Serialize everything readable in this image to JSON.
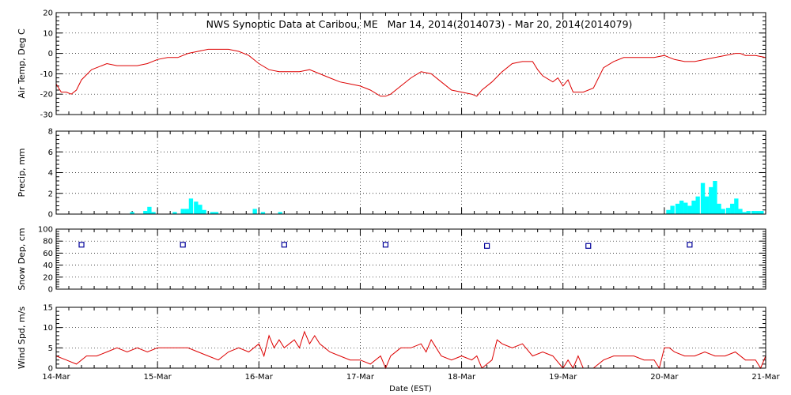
{
  "title": "NWS Synoptic Data at Caribou, ME   Mar 14, 2014(2014073) - Mar 20, 2014(2014079)",
  "xlabel": "Date (EST)",
  "xticks": [
    "14-Mar",
    "15-Mar",
    "16-Mar",
    "17-Mar",
    "18-Mar",
    "19-Mar",
    "20-Mar",
    "21-Mar"
  ],
  "colors": {
    "temp": "#dd0000",
    "precip": "#00ffff",
    "snow": "#000099",
    "wind": "#dd0000",
    "axis": "#000000"
  },
  "chart_data": [
    {
      "type": "line",
      "ylabel": "Air Temp, Deg C",
      "ylim": [
        -30,
        20
      ],
      "yticks": [
        -30,
        -20,
        -10,
        0,
        10,
        20
      ],
      "grid": true,
      "x_unit": "days since 14-Mar 00:00 EST",
      "x": [
        0,
        0.05,
        0.1,
        0.15,
        0.2,
        0.25,
        0.35,
        0.45,
        0.5,
        0.6,
        0.7,
        0.8,
        0.9,
        1.0,
        1.1,
        1.2,
        1.3,
        1.4,
        1.5,
        1.6,
        1.7,
        1.8,
        1.9,
        2.0,
        2.1,
        2.2,
        2.3,
        2.4,
        2.5,
        2.6,
        2.7,
        2.8,
        2.9,
        3.0,
        3.1,
        3.2,
        3.25,
        3.3,
        3.4,
        3.5,
        3.6,
        3.7,
        3.8,
        3.9,
        4.0,
        4.1,
        4.15,
        4.2,
        4.3,
        4.4,
        4.5,
        4.6,
        4.7,
        4.75,
        4.8,
        4.9,
        4.95,
        5.0,
        5.05,
        5.1,
        5.2,
        5.3,
        5.4,
        5.5,
        5.6,
        5.7,
        5.8,
        5.9,
        6.0,
        6.05,
        6.1,
        6.2,
        6.3,
        6.4,
        6.5,
        6.6,
        6.7,
        6.75,
        6.8,
        6.9,
        7.0
      ],
      "values": [
        -15,
        -19,
        -19,
        -20,
        -18,
        -13,
        -8,
        -6,
        -5,
        -6,
        -6,
        -6,
        -5,
        -3,
        -2,
        -2,
        0,
        1,
        2,
        2,
        2,
        1,
        -1,
        -5,
        -8,
        -9,
        -9,
        -9,
        -8,
        -10,
        -12,
        -14,
        -15,
        -16,
        -18,
        -21,
        -21,
        -20,
        -16,
        -12,
        -9,
        -10,
        -14,
        -18,
        -19,
        -20,
        -21,
        -18,
        -14,
        -9,
        -5,
        -4,
        -4,
        -8,
        -11,
        -14,
        -12,
        -16,
        -13,
        -19,
        -19,
        -17,
        -7,
        -4,
        -2,
        -2,
        -2,
        -2,
        -1,
        -2,
        -3,
        -4,
        -4,
        -3,
        -2,
        -1,
        0,
        0,
        -1,
        -1,
        -2
      ]
    },
    {
      "type": "bar",
      "ylabel": "Precip, mm",
      "ylim": [
        0,
        8
      ],
      "yticks": [
        0,
        2,
        4,
        6,
        8
      ],
      "grid": true,
      "x_unit": "days since 14-Mar 00:00 EST (hourly bins)",
      "x": [
        0.75,
        0.88,
        0.92,
        0.96,
        1.17,
        1.25,
        1.29,
        1.33,
        1.38,
        1.42,
        1.46,
        1.54,
        1.58,
        1.96,
        2.04,
        2.21,
        6.04,
        6.08,
        6.13,
        6.17,
        6.21,
        6.25,
        6.29,
        6.33,
        6.38,
        6.42,
        6.46,
        6.5,
        6.54,
        6.58,
        6.63,
        6.67,
        6.71,
        6.75,
        6.79,
        6.83,
        6.88,
        6.92,
        6.96
      ],
      "values": [
        0.2,
        0.3,
        0.7,
        0.2,
        0.2,
        0.5,
        0.5,
        1.5,
        1.2,
        0.9,
        0.4,
        0.2,
        0.2,
        0.5,
        0.2,
        0.2,
        0.4,
        0.8,
        1.0,
        1.3,
        1.1,
        0.8,
        1.3,
        1.7,
        3.0,
        1.7,
        2.6,
        3.2,
        1.0,
        0.5,
        0.6,
        1.0,
        1.5,
        0.5,
        0.2,
        0.3,
        0.3,
        0.3,
        0.3
      ]
    },
    {
      "type": "scatter",
      "ylabel": "Snow Dep, cm",
      "ylim": [
        0,
        100
      ],
      "yticks": [
        0,
        20,
        40,
        60,
        80,
        100
      ],
      "grid": true,
      "x_unit": "days since 14-Mar 00:00 EST",
      "x": [
        0.25,
        1.25,
        2.25,
        3.25,
        4.25,
        5.25,
        6.25
      ],
      "values": [
        74,
        74,
        74,
        74,
        72,
        72,
        74
      ]
    },
    {
      "type": "line",
      "ylabel": "Wind Spd, m/s",
      "ylim": [
        0,
        15
      ],
      "yticks": [
        0,
        5,
        10,
        15
      ],
      "grid": true,
      "x_unit": "days since 14-Mar 00:00 EST",
      "x": [
        0,
        0.1,
        0.2,
        0.3,
        0.4,
        0.5,
        0.6,
        0.7,
        0.8,
        0.9,
        1.0,
        1.1,
        1.2,
        1.3,
        1.4,
        1.5,
        1.6,
        1.7,
        1.8,
        1.9,
        2.0,
        2.05,
        2.1,
        2.15,
        2.2,
        2.25,
        2.3,
        2.35,
        2.4,
        2.45,
        2.5,
        2.55,
        2.6,
        2.65,
        2.7,
        2.8,
        2.9,
        3.0,
        3.1,
        3.2,
        3.25,
        3.3,
        3.4,
        3.5,
        3.6,
        3.65,
        3.7,
        3.75,
        3.8,
        3.9,
        4.0,
        4.1,
        4.15,
        4.2,
        4.3,
        4.35,
        4.4,
        4.5,
        4.6,
        4.7,
        4.8,
        4.9,
        5.0,
        5.05,
        5.1,
        5.15,
        5.2,
        5.3,
        5.4,
        5.5,
        5.6,
        5.7,
        5.8,
        5.9,
        5.95,
        6.0,
        6.05,
        6.1,
        6.2,
        6.3,
        6.4,
        6.5,
        6.6,
        6.7,
        6.8,
        6.9,
        6.95,
        7.0
      ],
      "values": [
        3,
        2,
        1,
        3,
        3,
        4,
        5,
        4,
        5,
        4,
        5,
        5,
        5,
        5,
        4,
        3,
        2,
        4,
        5,
        4,
        6,
        3,
        8,
        5,
        7,
        5,
        6,
        7,
        5,
        9,
        6,
        8,
        6,
        5,
        4,
        3,
        2,
        2,
        1,
        3,
        0,
        3,
        5,
        5,
        6,
        4,
        7,
        5,
        3,
        2,
        3,
        2,
        3,
        0,
        2,
        7,
        6,
        5,
        6,
        3,
        4,
        3,
        0,
        2,
        0,
        3,
        0,
        0,
        2,
        3,
        3,
        3,
        2,
        2,
        0,
        5,
        5,
        4,
        3,
        3,
        4,
        3,
        3,
        4,
        2,
        2,
        0,
        3
      ]
    }
  ]
}
